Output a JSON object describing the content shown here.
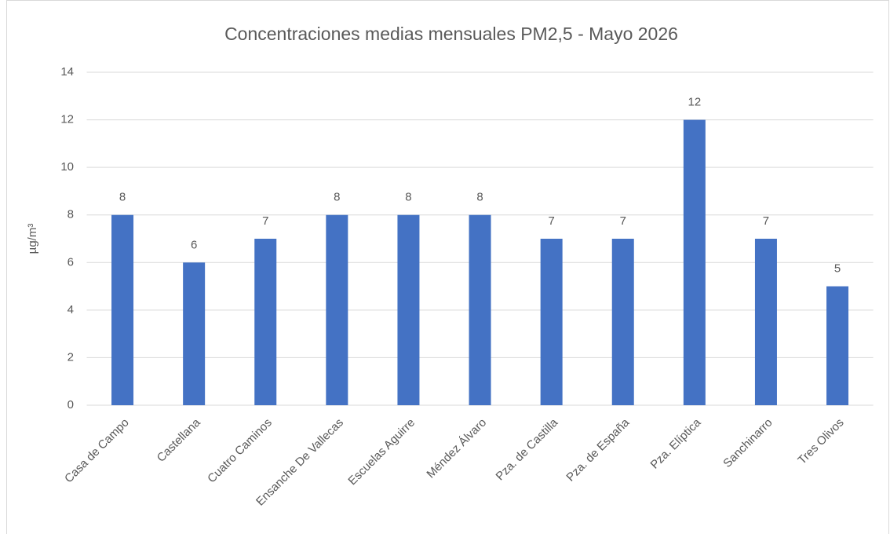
{
  "chart_data": {
    "type": "bar",
    "title": "Concentraciones medias mensuales PM2,5 - Mayo 2026",
    "y_label": "µg/m³",
    "categories": [
      "Casa de Campo",
      "Castellana",
      "Cuatro Caminos",
      "Ensanche De Vallecas",
      "Escuelas Aguirre",
      "Méndez Álvaro",
      "Pza. de Castilla",
      "Pza. de España",
      "Pza. Elíptica",
      "Sanchinarro",
      "Tres Olivos"
    ],
    "values": [
      8,
      6,
      7,
      8,
      8,
      8,
      7,
      7,
      12,
      7,
      5
    ],
    "color": "#4472c4",
    "ylim": [
      0,
      14
    ],
    "yticks": [
      0,
      2,
      4,
      6,
      8,
      10,
      12,
      14
    ],
    "grid": true,
    "data_labels": true
  }
}
